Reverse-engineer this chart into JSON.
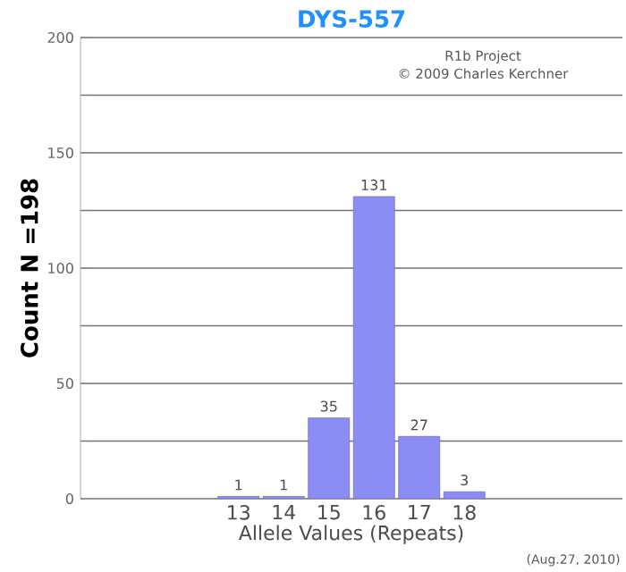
{
  "chart_data": {
    "type": "bar",
    "title": "DYS-557",
    "xlabel": "Allele Values (Repeats)",
    "ylabel": "Count N =198",
    "categories": [
      null,
      null,
      null,
      "13",
      "14",
      "15",
      "16",
      "17",
      "18",
      null,
      null,
      null
    ],
    "values": [
      null,
      null,
      null,
      1,
      1,
      35,
      131,
      27,
      3,
      null,
      null,
      null
    ],
    "color": "#8c8cf5",
    "ylim": [
      0,
      200
    ],
    "yticks": [
      0,
      {
        "value": 25,
        "label": null
      },
      50,
      {
        "value": 75,
        "label": null
      },
      100,
      {
        "value": 125,
        "label": null
      },
      150,
      {
        "value": 175,
        "label": null
      },
      200
    ],
    "grid": "y",
    "data_labels": true,
    "annotations": [
      "R1b Project",
      "© 2009 Charles Kerchner",
      "(Aug.27, 2010)"
    ]
  }
}
